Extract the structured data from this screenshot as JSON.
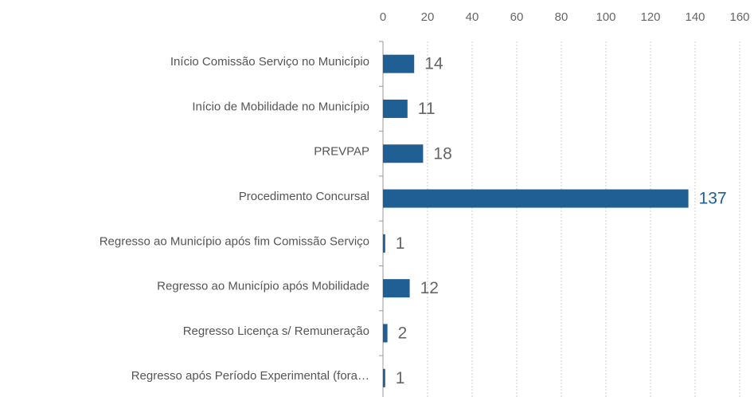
{
  "chart_data": {
    "type": "bar",
    "orientation": "horizontal",
    "categories": [
      "Início Comissão Serviço no Município",
      "Início de Mobilidade no Município",
      "PREVPAP",
      "Procedimento Concursal",
      "Regresso ao Município após fim Comissão Serviço",
      "Regresso ao Município após Mobilidade",
      "Regresso Licença s/ Remuneração",
      "Regresso após Período Experimental (fora…"
    ],
    "values": [
      14,
      11,
      18,
      137,
      1,
      12,
      2,
      1
    ],
    "color": "#1f5f94",
    "xlim": [
      0,
      160
    ],
    "xticks": [
      0,
      20,
      40,
      60,
      80,
      100,
      120,
      140,
      160
    ],
    "grid": true
  }
}
